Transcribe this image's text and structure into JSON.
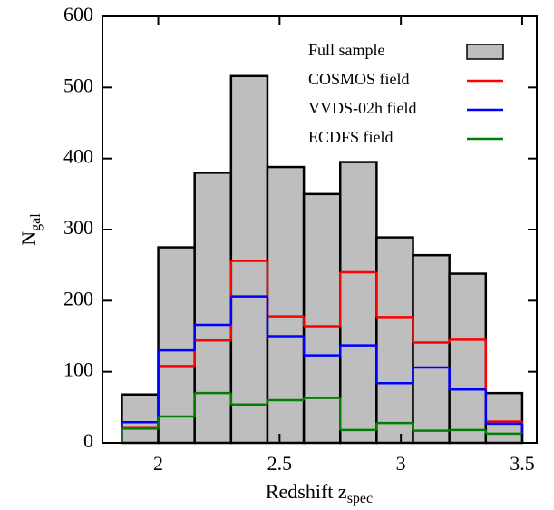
{
  "chart_data": {
    "type": "histogram",
    "xlabel": "Redshift z",
    "xlabel_sub": "spec",
    "ylabel": "N",
    "ylabel_sub": "gal",
    "bins": [
      1.85,
      2.0,
      2.15,
      2.3,
      2.45,
      2.6,
      2.75,
      2.9,
      3.05,
      3.2,
      3.35,
      3.5
    ],
    "series": [
      {
        "name": "Full sample",
        "color": "#bebebe",
        "values": [
          68,
          275,
          380,
          516,
          388,
          350,
          395,
          289,
          264,
          238,
          70
        ]
      },
      {
        "name": "COSMOS field",
        "color": "#ff0000",
        "values": [
          22,
          108,
          144,
          256,
          178,
          164,
          240,
          177,
          141,
          145,
          30
        ]
      },
      {
        "name": "VVDS-02h field",
        "color": "#0000ff",
        "values": [
          29,
          130,
          166,
          206,
          150,
          123,
          137,
          84,
          106,
          75,
          27
        ]
      },
      {
        "name": "ECDFS field",
        "color": "#008000",
        "values": [
          20,
          37,
          70,
          54,
          60,
          63,
          18,
          28,
          17,
          18,
          13
        ]
      }
    ],
    "xlim": [
      1.77,
      3.56
    ],
    "ylim": [
      0,
      600
    ],
    "xticks": [
      2,
      2.5,
      3,
      3.5
    ],
    "yticks": [
      0,
      100,
      200,
      300,
      400,
      500,
      600
    ],
    "legend": "upper right"
  }
}
